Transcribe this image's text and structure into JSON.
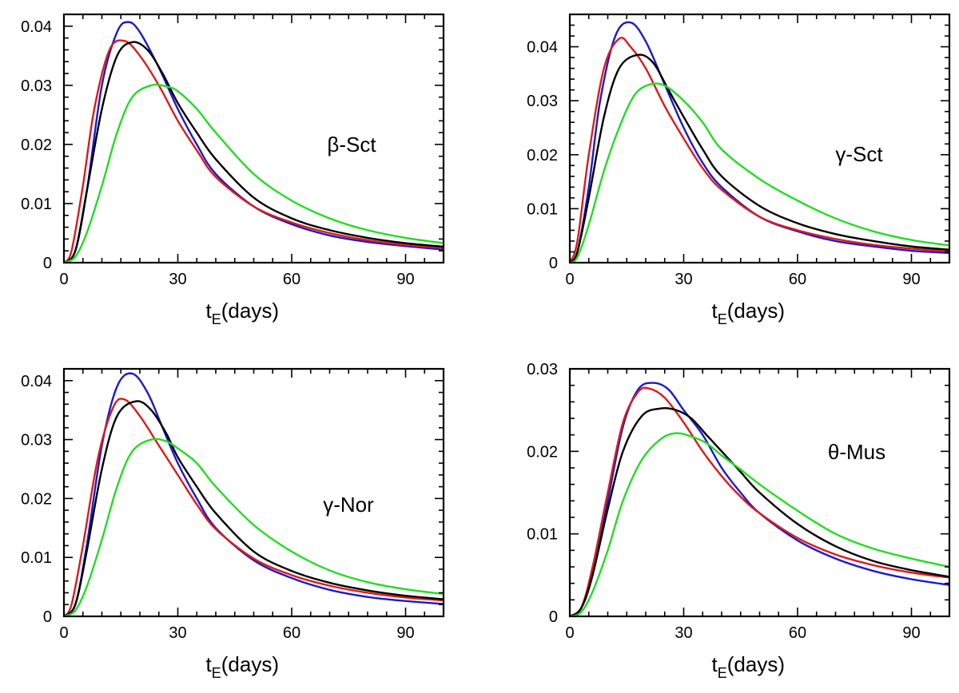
{
  "chart_data": [
    {
      "type": "line",
      "annotation": "β-Sct",
      "xlabel_main": "t",
      "xlabel_sub": "E",
      "xlabel_rest": "(days)",
      "xlim": [
        0,
        100
      ],
      "ylim": [
        0,
        0.042
      ],
      "xticks": [
        0,
        30,
        60,
        90
      ],
      "yticks": [
        0,
        0.01,
        0.02,
        0.03,
        0.04
      ],
      "ytick_labels": [
        "0",
        "0.01",
        "0.02",
        "0.03",
        "0.04"
      ],
      "series": [
        {
          "color": "#1a1acc",
          "x": [
            0,
            3,
            6,
            10,
            14,
            17,
            20,
            25,
            30,
            35,
            40,
            50,
            60,
            70,
            80,
            90,
            100
          ],
          "y": [
            0,
            0.002,
            0.012,
            0.03,
            0.039,
            0.0407,
            0.039,
            0.033,
            0.026,
            0.02,
            0.015,
            0.0095,
            0.0065,
            0.0046,
            0.0035,
            0.0028,
            0.0022
          ]
        },
        {
          "color": "#dd1a1a",
          "x": [
            0,
            2,
            5,
            8,
            12,
            16,
            20,
            25,
            30,
            35,
            40,
            50,
            60,
            70,
            80,
            90,
            100
          ],
          "y": [
            0,
            0.002,
            0.013,
            0.026,
            0.036,
            0.0375,
            0.035,
            0.03,
            0.024,
            0.019,
            0.0145,
            0.0095,
            0.0068,
            0.005,
            0.0038,
            0.003,
            0.0025
          ]
        },
        {
          "color": "#000000",
          "x": [
            0,
            3,
            6,
            10,
            14,
            18,
            22,
            26,
            30,
            35,
            40,
            50,
            60,
            70,
            80,
            90,
            100
          ],
          "y": [
            0,
            0.002,
            0.012,
            0.026,
            0.035,
            0.0373,
            0.036,
            0.032,
            0.027,
            0.022,
            0.0175,
            0.011,
            0.0075,
            0.0055,
            0.0042,
            0.0033,
            0.0027
          ]
        },
        {
          "color": "#22dd22",
          "x": [
            0,
            3,
            6,
            10,
            14,
            18,
            23,
            27,
            30,
            35,
            40,
            50,
            60,
            70,
            80,
            90,
            100
          ],
          "y": [
            0,
            0.001,
            0.005,
            0.013,
            0.022,
            0.028,
            0.03,
            0.0298,
            0.029,
            0.026,
            0.022,
            0.015,
            0.0105,
            0.0075,
            0.0055,
            0.0042,
            0.0033
          ]
        }
      ]
    },
    {
      "type": "line",
      "annotation": "γ-Sct",
      "xlabel_main": "t",
      "xlabel_sub": "E",
      "xlabel_rest": "(days)",
      "xlim": [
        0,
        100
      ],
      "ylim": [
        0,
        0.046
      ],
      "xticks": [
        0,
        30,
        60,
        90
      ],
      "yticks": [
        0,
        0.01,
        0.02,
        0.03,
        0.04
      ],
      "ytick_labels": [
        "0",
        "0.01",
        "0.02",
        "0.03",
        "0.04"
      ],
      "series": [
        {
          "color": "#1a1acc",
          "x": [
            0,
            2,
            5,
            8,
            12,
            16,
            20,
            25,
            30,
            35,
            40,
            50,
            60,
            70,
            80,
            90,
            100
          ],
          "y": [
            0,
            0.002,
            0.014,
            0.03,
            0.042,
            0.0445,
            0.041,
            0.033,
            0.025,
            0.0185,
            0.014,
            0.0085,
            0.0058,
            0.004,
            0.003,
            0.0022,
            0.0018
          ]
        },
        {
          "color": "#dd1a1a",
          "x": [
            0,
            2,
            5,
            9,
            13,
            16,
            20,
            25,
            30,
            35,
            40,
            50,
            60,
            70,
            80,
            90,
            100
          ],
          "y": [
            0,
            0.004,
            0.02,
            0.036,
            0.0415,
            0.04,
            0.036,
            0.029,
            0.023,
            0.0175,
            0.0135,
            0.0085,
            0.006,
            0.0044,
            0.0033,
            0.0026,
            0.0021
          ]
        },
        {
          "color": "#000000",
          "x": [
            0,
            2,
            5,
            9,
            13,
            18,
            22,
            26,
            30,
            35,
            40,
            50,
            60,
            70,
            80,
            90,
            100
          ],
          "y": [
            0,
            0.002,
            0.012,
            0.027,
            0.036,
            0.0385,
            0.037,
            0.032,
            0.027,
            0.021,
            0.016,
            0.0105,
            0.0073,
            0.0053,
            0.004,
            0.003,
            0.0024
          ]
        },
        {
          "color": "#22dd22",
          "x": [
            0,
            2,
            5,
            9,
            13,
            17,
            21,
            25,
            30,
            35,
            40,
            50,
            60,
            70,
            80,
            90,
            100
          ],
          "y": [
            0,
            0.001,
            0.007,
            0.017,
            0.025,
            0.031,
            0.033,
            0.0328,
            0.03,
            0.026,
            0.021,
            0.0155,
            0.0115,
            0.0082,
            0.0058,
            0.0042,
            0.0032
          ]
        }
      ]
    },
    {
      "type": "line",
      "annotation": "γ-Nor",
      "xlabel_main": "t",
      "xlabel_sub": "E",
      "xlabel_rest": "(days)",
      "xlim": [
        0,
        100
      ],
      "ylim": [
        0,
        0.042
      ],
      "xticks": [
        0,
        30,
        60,
        90
      ],
      "yticks": [
        0,
        0.01,
        0.02,
        0.03,
        0.04
      ],
      "ytick_labels": [
        "0",
        "0.01",
        "0.02",
        "0.03",
        "0.04"
      ],
      "series": [
        {
          "color": "#1a1acc",
          "x": [
            0,
            3,
            6,
            10,
            14,
            18,
            22,
            26,
            30,
            35,
            40,
            50,
            60,
            70,
            80,
            90,
            100
          ],
          "y": [
            0,
            0.002,
            0.012,
            0.029,
            0.039,
            0.0412,
            0.038,
            0.032,
            0.026,
            0.02,
            0.015,
            0.0095,
            0.0065,
            0.0045,
            0.0033,
            0.0026,
            0.0021
          ]
        },
        {
          "color": "#dd1a1a",
          "x": [
            0,
            2,
            5,
            9,
            13,
            16,
            20,
            25,
            30,
            35,
            40,
            50,
            60,
            70,
            80,
            90,
            100
          ],
          "y": [
            0,
            0.002,
            0.012,
            0.027,
            0.0355,
            0.0368,
            0.034,
            0.029,
            0.024,
            0.019,
            0.0148,
            0.0098,
            0.007,
            0.0052,
            0.004,
            0.0032,
            0.0027
          ]
        },
        {
          "color": "#000000",
          "x": [
            0,
            3,
            6,
            10,
            14,
            19,
            23,
            27,
            30,
            35,
            40,
            50,
            60,
            70,
            80,
            90,
            100
          ],
          "y": [
            0,
            0.002,
            0.011,
            0.025,
            0.034,
            0.0365,
            0.035,
            0.031,
            0.027,
            0.022,
            0.0175,
            0.011,
            0.0077,
            0.0057,
            0.0044,
            0.0035,
            0.0029
          ]
        },
        {
          "color": "#22dd22",
          "x": [
            0,
            3,
            6,
            10,
            14,
            18,
            23,
            27,
            30,
            35,
            40,
            50,
            60,
            70,
            80,
            90,
            100
          ],
          "y": [
            0,
            0.001,
            0.005,
            0.013,
            0.022,
            0.028,
            0.03,
            0.0297,
            0.0285,
            0.026,
            0.022,
            0.0155,
            0.011,
            0.0078,
            0.0058,
            0.0046,
            0.0038
          ]
        }
      ]
    },
    {
      "type": "line",
      "annotation": "θ-Mus",
      "xlabel_main": "t",
      "xlabel_sub": "E",
      "xlabel_rest": "(days)",
      "xlim": [
        0,
        100
      ],
      "ylim": [
        0,
        0.03
      ],
      "xticks": [
        0,
        30,
        60,
        90
      ],
      "yticks": [
        0,
        0.01,
        0.02,
        0.03
      ],
      "ytick_labels": [
        "0",
        "0.01",
        "0.02",
        "0.03"
      ],
      "series": [
        {
          "color": "#1a1acc",
          "x": [
            0,
            3,
            6,
            10,
            14,
            18,
            22,
            26,
            30,
            35,
            40,
            45,
            50,
            60,
            70,
            80,
            90,
            100
          ],
          "y": [
            0,
            0.001,
            0.005,
            0.014,
            0.023,
            0.0275,
            0.0283,
            0.0275,
            0.025,
            0.022,
            0.018,
            0.015,
            0.0125,
            0.0092,
            0.007,
            0.0055,
            0.0045,
            0.0038
          ]
        },
        {
          "color": "#dd1a1a",
          "x": [
            0,
            3,
            6,
            10,
            14,
            18,
            21,
            25,
            30,
            35,
            40,
            45,
            50,
            60,
            70,
            80,
            90,
            100
          ],
          "y": [
            0,
            0.001,
            0.006,
            0.015,
            0.0235,
            0.0272,
            0.0276,
            0.0265,
            0.0235,
            0.02,
            0.017,
            0.0145,
            0.0125,
            0.0095,
            0.0075,
            0.0062,
            0.0053,
            0.0047
          ]
        },
        {
          "color": "#000000",
          "x": [
            0,
            3,
            6,
            10,
            14,
            19,
            24,
            28,
            32,
            36,
            40,
            45,
            50,
            60,
            70,
            80,
            90,
            100
          ],
          "y": [
            0,
            0.001,
            0.005,
            0.013,
            0.02,
            0.0243,
            0.0252,
            0.025,
            0.024,
            0.022,
            0.02,
            0.0175,
            0.015,
            0.0112,
            0.0085,
            0.0067,
            0.0056,
            0.0048
          ]
        },
        {
          "color": "#22dd22",
          "x": [
            0,
            3,
            6,
            10,
            14,
            19,
            24,
            28,
            32,
            36,
            40,
            45,
            50,
            60,
            70,
            80,
            90,
            100
          ],
          "y": [
            0,
            0.0005,
            0.003,
            0.008,
            0.014,
            0.019,
            0.0215,
            0.0222,
            0.0218,
            0.021,
            0.0195,
            0.0178,
            0.016,
            0.0128,
            0.01,
            0.0082,
            0.007,
            0.006
          ]
        }
      ]
    }
  ]
}
